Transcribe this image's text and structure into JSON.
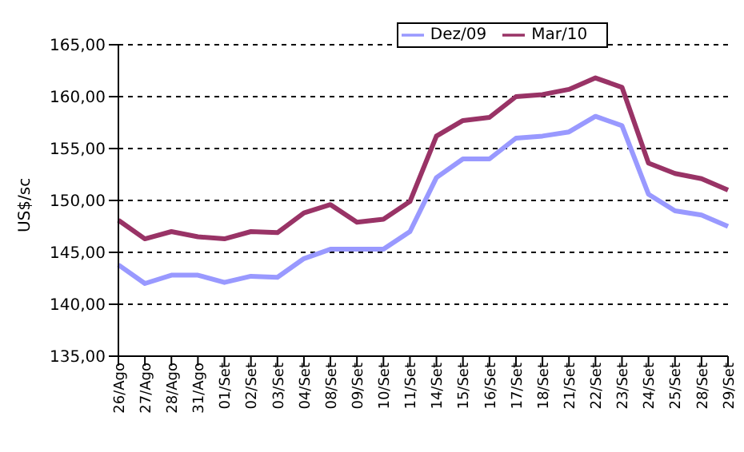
{
  "chart_data": {
    "type": "line",
    "ylabel": "US$/sc",
    "categories": [
      "26/Ago",
      "27/Ago",
      "28/Ago",
      "31/Ago",
      "01/Set",
      "02/Set",
      "03/Set",
      "04/Set",
      "08/Set",
      "09/Set",
      "10/Set",
      "11/Set",
      "14/Set",
      "15/Set",
      "16/Set",
      "17/Set",
      "18/Set",
      "21/Set",
      "22/Set",
      "23/Set",
      "24/Set",
      "25/Set",
      "28/Set",
      "29/Set"
    ],
    "series": [
      {
        "name": "Dez/09",
        "color": "#9999ff",
        "values": [
          143.8,
          142.0,
          142.8,
          142.8,
          142.1,
          142.7,
          142.6,
          144.4,
          145.3,
          145.3,
          145.3,
          147.0,
          152.2,
          154.0,
          154.0,
          156.0,
          156.2,
          156.6,
          158.1,
          157.2,
          150.6,
          149.0,
          148.6,
          147.5
        ]
      },
      {
        "name": "Mar/10",
        "color": "#993366",
        "values": [
          148.1,
          146.3,
          147.0,
          146.5,
          146.3,
          147.0,
          146.9,
          148.8,
          149.6,
          147.9,
          148.2,
          149.9,
          156.2,
          157.7,
          158.0,
          160.0,
          160.2,
          160.7,
          161.8,
          160.9,
          153.6,
          152.6,
          152.1,
          151.0
        ]
      }
    ],
    "ylim": [
      135,
      165
    ],
    "yticks": [
      {
        "value": 135,
        "label": "135,00"
      },
      {
        "value": 140,
        "label": "140,00"
      },
      {
        "value": 145,
        "label": "145,00"
      },
      {
        "value": 150,
        "label": "150,00"
      },
      {
        "value": 155,
        "label": "155,00"
      },
      {
        "value": 160,
        "label": "160,00"
      },
      {
        "value": 165,
        "label": "165,00"
      }
    ],
    "grid": "y",
    "legend": "top",
    "marker": "none",
    "line_style": "solid"
  }
}
